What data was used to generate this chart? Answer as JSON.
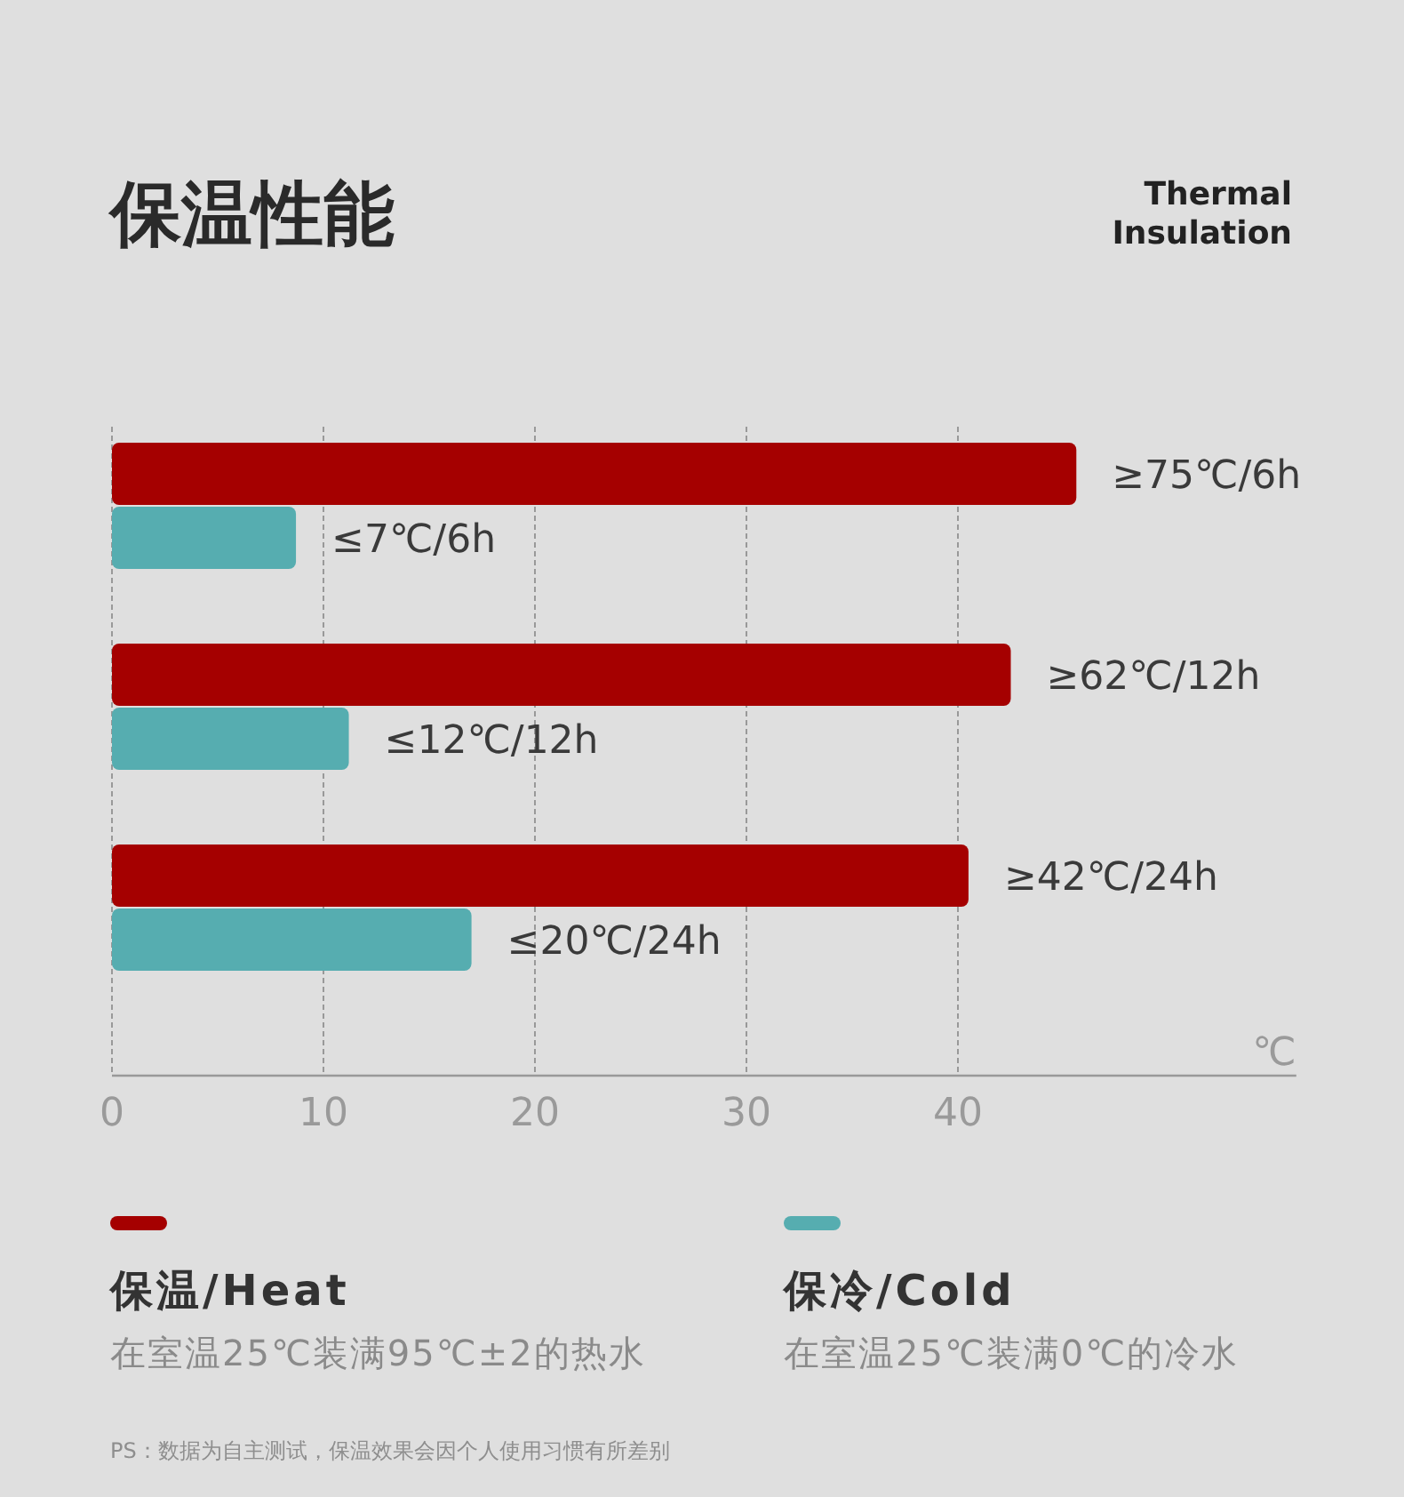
{
  "chart_data": {
    "type": "bar",
    "orientation": "horizontal",
    "title": "保温性能",
    "subtitle": "Thermal Insulation",
    "xlabel": "℃",
    "categories": [
      null,
      null,
      null
    ],
    "series": [
      {
        "name": "保温/Heat",
        "color": "#a50000",
        "values": [
          45.6,
          42.5,
          40.5
        ],
        "value_labels": [
          "≥75℃/6h",
          "≥62℃/12h",
          "≥42℃/24h"
        ]
      },
      {
        "name": "保冷/Cold",
        "color": "#56adb0",
        "values": [
          8.7,
          11.2,
          17.0
        ],
        "value_labels": [
          "≤7℃/6h",
          "≤12℃/12h",
          "≤20℃/24h"
        ]
      }
    ],
    "xlim": [
      0,
      56
    ],
    "xticks": [
      0,
      10,
      20,
      30,
      40
    ],
    "grid": "x",
    "legend": "bottom",
    "tick_labels": "x",
    "annotations": [
      "在室温25℃装满95℃±2的热水",
      "在室温25℃装满0℃的冷水",
      "PS：数据为自主测试，保温效果会因个人使用习惯有所差别"
    ]
  }
}
